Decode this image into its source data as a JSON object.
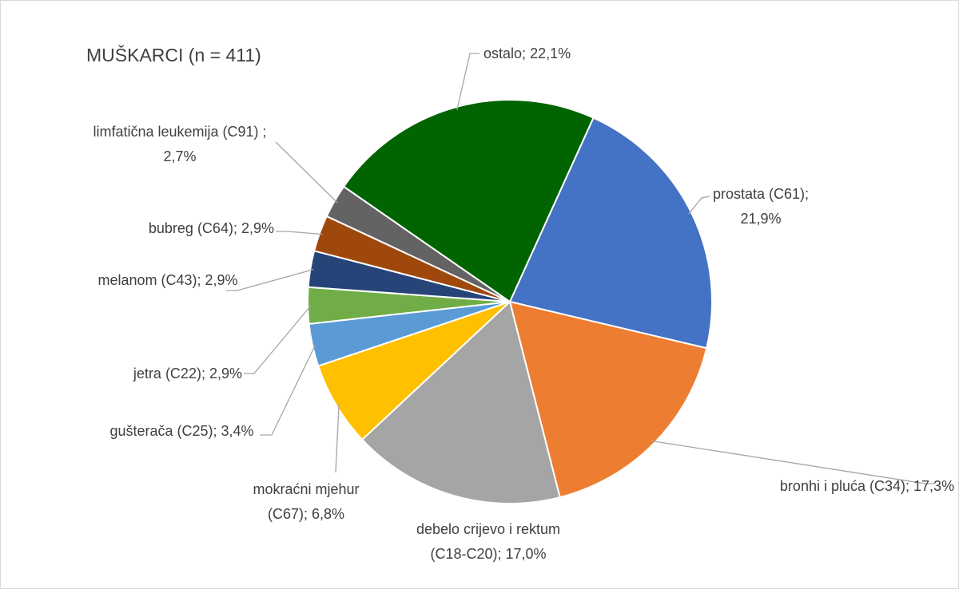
{
  "chart_data": {
    "type": "pie",
    "title": "MUŠKARCI (n = 411)",
    "categories": [
      "prostata (C61);",
      "bronhi i pluća (C34);",
      "debelo crijevo i rektum (C18-C20);",
      "mokraćni mjehur (C67);",
      "gušterača (C25);",
      "jetra (C22);",
      "melanom (C43);",
      "bubreg (C64);",
      "limfatična leukemija (C91) ;",
      "ostalo;"
    ],
    "values": [
      21.9,
      17.3,
      17.0,
      6.8,
      3.4,
      2.9,
      2.9,
      2.9,
      2.7,
      22.1
    ],
    "value_labels": [
      "21,9%",
      "17,3%",
      "17,0%",
      "6,8%",
      "3,4%",
      "2,9%",
      "2,9%",
      "2,9%",
      "2,7%",
      "22,1%"
    ],
    "colors": [
      "#4472c4",
      "#ed7d31",
      "#a5a5a5",
      "#ffc000",
      "#5b9bd5",
      "#70ad47",
      "#264478",
      "#9e480e",
      "#636363",
      "#006400"
    ]
  }
}
